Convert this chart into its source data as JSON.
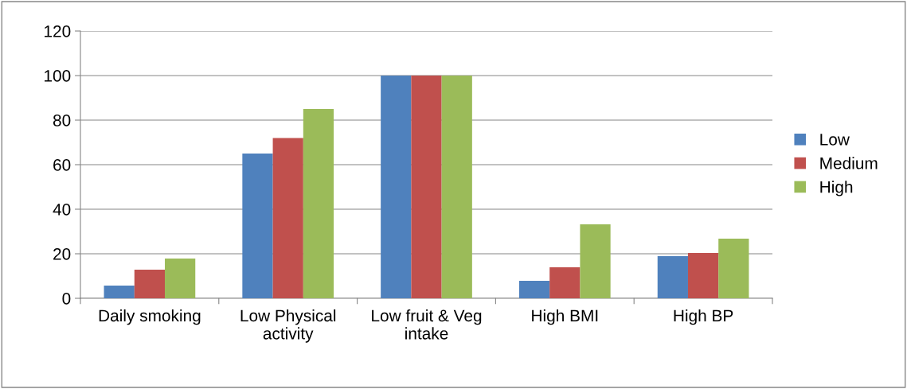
{
  "chart_data": {
    "type": "bar",
    "categories": [
      "Daily smoking",
      "Low Physical\nactivity",
      "Low fruit & Veg\nintake",
      "High BMI",
      "High BP"
    ],
    "series": [
      {
        "name": "Low",
        "color": "#4f81bd",
        "values": [
          5.7,
          65,
          100,
          7.9,
          18.9
        ]
      },
      {
        "name": "Medium",
        "color": "#c0504d",
        "values": [
          12.9,
          72,
          100,
          13.9,
          20.4
        ]
      },
      {
        "name": "High",
        "color": "#9bbb59",
        "values": [
          17.9,
          85,
          100,
          33.2,
          26.8
        ]
      }
    ],
    "ylim": [
      0,
      120
    ],
    "yticks": [
      0,
      20,
      40,
      60,
      80,
      100,
      120
    ],
    "grid": "y",
    "legend": "right"
  }
}
